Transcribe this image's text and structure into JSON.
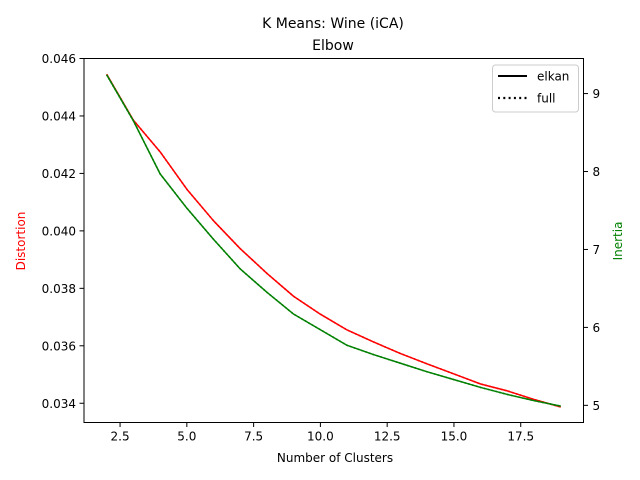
{
  "chart_data": {
    "type": "line",
    "title": "K Means: Wine (iCA)",
    "subtitle": "Elbow",
    "xlabel": "Number of Clusters",
    "ylabel_left": "Distortion",
    "ylabel_right": "Inertia",
    "xlim": [
      1.15,
      19.85
    ],
    "ylim_left": [
      0.03333,
      0.046
    ],
    "ylim_right": [
      4.78,
      9.45
    ],
    "x_ticks": [
      2.5,
      5.0,
      7.5,
      10.0,
      12.5,
      15.0,
      17.5
    ],
    "x_tick_labels": [
      "2.5",
      "5.0",
      "7.5",
      "10.0",
      "12.5",
      "15.0",
      "17.5"
    ],
    "y_left_ticks": [
      0.034,
      0.036,
      0.038,
      0.04,
      0.042,
      0.044,
      0.046
    ],
    "y_left_tick_labels": [
      "0.034",
      "0.036",
      "0.038",
      "0.040",
      "0.042",
      "0.044",
      "0.046"
    ],
    "y_right_ticks": [
      5,
      6,
      7,
      8,
      9
    ],
    "y_right_tick_labels": [
      "5",
      "6",
      "7",
      "8",
      "9"
    ],
    "grid": false,
    "legend_position": "top-right",
    "legend": [
      {
        "label": "elkan",
        "style": "solid"
      },
      {
        "label": "full",
        "style": "dotted"
      }
    ],
    "x": [
      2,
      3,
      4,
      5,
      6,
      7,
      8,
      9,
      10,
      11,
      12,
      13,
      14,
      15,
      16,
      17,
      18,
      19
    ],
    "series": [
      {
        "axis": "left",
        "color": "#ff0000",
        "style": "solid",
        "values": [
          0.04545,
          0.04385,
          0.04275,
          0.04145,
          0.04035,
          0.03938,
          0.03852,
          0.03772,
          0.0371,
          0.03655,
          0.03613,
          0.03573,
          0.03537,
          0.03502,
          0.03467,
          0.03443,
          0.03413,
          0.03387
        ]
      },
      {
        "axis": "left",
        "color": "#ff0000",
        "style": "dotted",
        "values": [
          0.04545,
          0.04385,
          0.04275,
          0.04145,
          0.04035,
          0.03938,
          0.03852,
          0.03772,
          0.0371,
          0.03655,
          0.03613,
          0.03573,
          0.03537,
          0.03502,
          0.03467,
          0.03443,
          0.03413,
          0.03387
        ]
      },
      {
        "axis": "right",
        "color": "#008000",
        "style": "solid",
        "values": [
          9.24,
          8.65,
          7.97,
          7.53,
          7.13,
          6.75,
          6.45,
          6.17,
          5.97,
          5.77,
          5.65,
          5.54,
          5.43,
          5.33,
          5.23,
          5.14,
          5.06,
          4.99
        ]
      },
      {
        "axis": "right",
        "color": "#008000",
        "style": "dotted",
        "values": [
          9.24,
          8.65,
          7.97,
          7.53,
          7.13,
          6.75,
          6.45,
          6.17,
          5.97,
          5.77,
          5.65,
          5.54,
          5.43,
          5.33,
          5.23,
          5.14,
          5.06,
          4.99
        ]
      }
    ],
    "colors": {
      "distortion": "#ff0000",
      "inertia": "#008000",
      "text": "#000000"
    }
  }
}
